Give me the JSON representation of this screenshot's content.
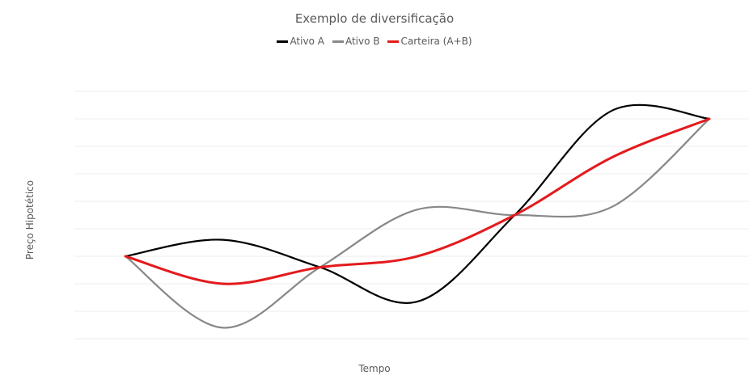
{
  "chart_data": {
    "type": "line",
    "title": "Exemplo de diversificação",
    "xlabel": "Tempo",
    "ylabel": "Preço Hipotético",
    "x": [
      0,
      1,
      2,
      3,
      4,
      5,
      6
    ],
    "ylim": [
      0,
      9
    ],
    "grid": true,
    "legend_position": "top",
    "series": [
      {
        "name": "Ativo A",
        "color": "#000000",
        "values": [
          3,
          3.6,
          2.6,
          1.35,
          4.5,
          8.3,
          8
        ]
      },
      {
        "name": "Ativo B",
        "color": "#888888",
        "values": [
          3,
          0.4,
          2.6,
          4.7,
          4.5,
          4.8,
          8
        ]
      },
      {
        "name": "Carteira (A+B)",
        "color": "#e41a1c",
        "values": [
          3,
          2,
          2.6,
          3.0,
          4.5,
          6.6,
          8
        ]
      }
    ]
  }
}
